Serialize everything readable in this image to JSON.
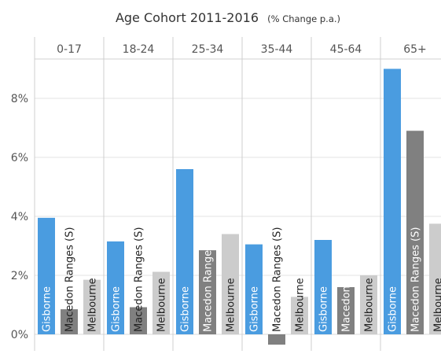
{
  "chart_data": {
    "type": "bar",
    "title": "Age Cohort 2011-2016",
    "subtitle": "(% Change p.a.)",
    "categories": [
      "0-17",
      "18-24",
      "25-34",
      "35-44",
      "45-64",
      "65+"
    ],
    "series": [
      {
        "name": "Gisborne",
        "color": "#4a9ce0",
        "values": [
          3.95,
          3.15,
          5.6,
          3.05,
          3.2,
          9.0
        ]
      },
      {
        "name": "Macedon Ranges (S)",
        "color": "#808080",
        "values": [
          0.85,
          0.92,
          2.85,
          -0.35,
          1.6,
          6.9
        ]
      },
      {
        "name": "Melbourne",
        "color": "#cccccc",
        "values": [
          1.85,
          2.12,
          3.4,
          1.27,
          2.0,
          3.75
        ]
      }
    ],
    "y_ticks": [
      "0%",
      "2%",
      "4%",
      "6%",
      "8%"
    ],
    "ylim": [
      -0.5,
      9.6
    ]
  }
}
